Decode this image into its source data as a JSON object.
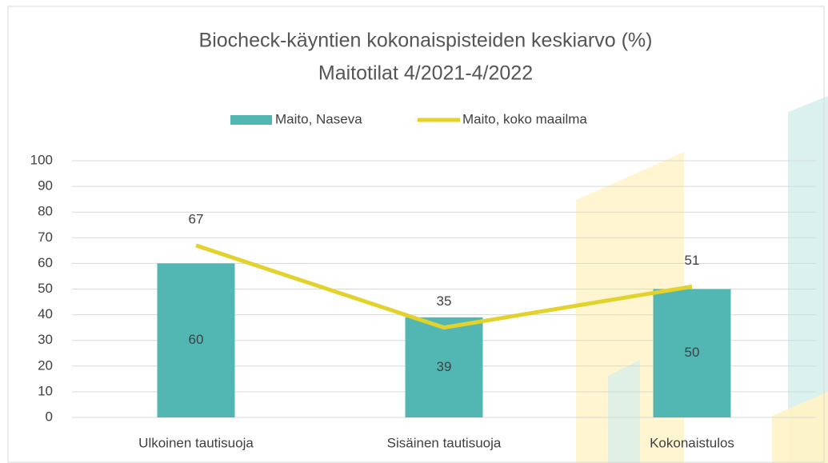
{
  "chart_data": {
    "type": "bar",
    "title": "Biocheck-käyntien kokonaispisteiden keskiarvo (%)",
    "subtitle": "Maitotilat 4/2021-4/2022",
    "categories": [
      "Ulkoinen tautisuoja",
      "Sisäinen tautisuoja",
      "Kokonaistulos"
    ],
    "series": [
      {
        "name": "Maito, Naseva",
        "type": "bar",
        "color": "#52b7b3",
        "values": [
          60,
          39,
          50
        ]
      },
      {
        "name": "Maito, koko maailma",
        "type": "line",
        "color": "#e3d22c",
        "values": [
          67,
          35,
          51
        ]
      }
    ],
    "ylim": [
      0,
      100
    ],
    "yticks": [
      0,
      10,
      20,
      30,
      40,
      50,
      60,
      70,
      80,
      90,
      100
    ],
    "grid": true,
    "legend": "top"
  }
}
